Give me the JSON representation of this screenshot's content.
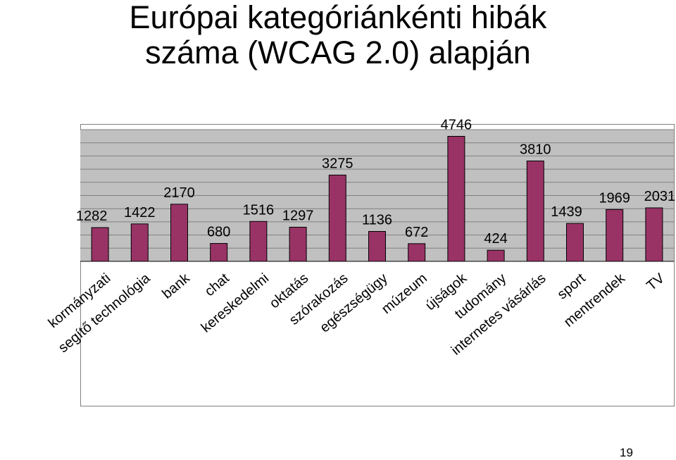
{
  "page": {
    "title_line1": "Európai kategóriánkénti hibák",
    "title_line2": "száma (WCAG 2.0) alapján",
    "page_number": "19"
  },
  "colors": {
    "bar": "#993366",
    "plot_area": "#c0c0c0",
    "gridline": "#808080"
  },
  "chart_data": {
    "type": "bar",
    "title": "Európai kategóriánkénti hibák száma (WCAG 2.0) alapján",
    "categories": [
      "kormányzati",
      "segítő technológia",
      "bank",
      "chat",
      "kereskedelmi",
      "oktatás",
      "szórakozás",
      "egészségügy",
      "múzeum",
      "újságok",
      "tudomány",
      "internetes vásárlás",
      "sport",
      "mentrendek",
      "TV"
    ],
    "values": [
      1282,
      1422,
      2170,
      680,
      1516,
      1297,
      3275,
      1136,
      672,
      4746,
      424,
      3810,
      1439,
      1969,
      2031
    ],
    "ylim": [
      0,
      5000
    ],
    "grid": true,
    "legend": "none"
  }
}
